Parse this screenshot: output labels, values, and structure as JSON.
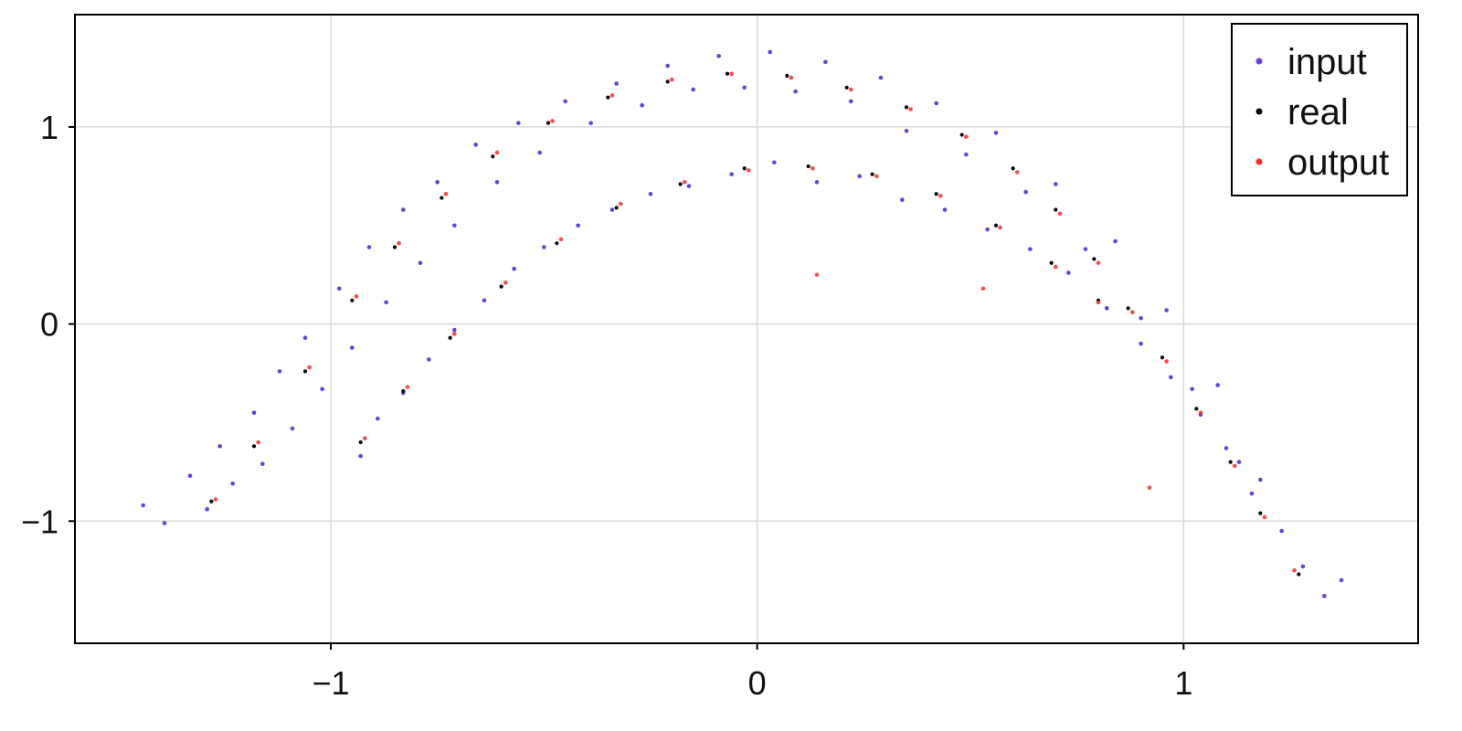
{
  "chart_data": {
    "type": "scatter",
    "title": "",
    "xlabel": "",
    "ylabel": "",
    "xlim": [
      -1.6,
      1.55
    ],
    "ylim": [
      -1.62,
      1.57
    ],
    "x_ticks": [
      {
        "value": -1,
        "label": "−1"
      },
      {
        "value": 0,
        "label": "0"
      },
      {
        "value": 1,
        "label": "1"
      }
    ],
    "y_ticks": [
      {
        "value": -1,
        "label": "−1"
      },
      {
        "value": 0,
        "label": "0"
      },
      {
        "value": 1,
        "label": "1"
      }
    ],
    "grid": true,
    "legend_position": "top-right",
    "series": [
      {
        "name": "input",
        "color": "#6a3fe0",
        "marker": "dot",
        "description": "noisy samples around the curves",
        "samples": [
          [
            -1.44,
            -0.92
          ],
          [
            -1.39,
            -1.01
          ],
          [
            -1.33,
            -0.77
          ],
          [
            -1.29,
            -0.94
          ],
          [
            -1.26,
            -0.62
          ],
          [
            -1.23,
            -0.81
          ],
          [
            -1.18,
            -0.45
          ],
          [
            -1.16,
            -0.71
          ],
          [
            -1.12,
            -0.24
          ],
          [
            -1.09,
            -0.53
          ],
          [
            -1.06,
            -0.07
          ],
          [
            -1.02,
            -0.33
          ],
          [
            -0.98,
            0.18
          ],
          [
            -0.95,
            -0.12
          ],
          [
            -0.91,
            0.39
          ],
          [
            -0.87,
            0.11
          ],
          [
            -0.83,
            0.58
          ],
          [
            -0.79,
            0.31
          ],
          [
            -0.75,
            0.72
          ],
          [
            -0.71,
            0.5
          ],
          [
            -0.66,
            0.91
          ],
          [
            -0.61,
            0.72
          ],
          [
            -0.56,
            1.02
          ],
          [
            -0.51,
            0.87
          ],
          [
            -0.45,
            1.13
          ],
          [
            -0.39,
            1.02
          ],
          [
            -0.33,
            1.22
          ],
          [
            -0.27,
            1.11
          ],
          [
            -0.21,
            1.31
          ],
          [
            -0.15,
            1.19
          ],
          [
            -0.09,
            1.36
          ],
          [
            -0.03,
            1.2
          ],
          [
            0.03,
            1.38
          ],
          [
            0.09,
            1.18
          ],
          [
            0.16,
            1.33
          ],
          [
            0.22,
            1.13
          ],
          [
            0.29,
            1.25
          ],
          [
            0.35,
            0.98
          ],
          [
            0.42,
            1.12
          ],
          [
            0.49,
            0.86
          ],
          [
            0.56,
            0.97
          ],
          [
            0.63,
            0.67
          ],
          [
            0.7,
            0.71
          ],
          [
            0.77,
            0.38
          ],
          [
            0.84,
            0.42
          ],
          [
            0.9,
            0.03
          ],
          [
            0.96,
            0.07
          ],
          [
            1.02,
            -0.33
          ],
          [
            1.08,
            -0.31
          ],
          [
            1.13,
            -0.7
          ],
          [
            1.18,
            -0.79
          ],
          [
            1.23,
            -1.05
          ],
          [
            1.28,
            -1.23
          ],
          [
            1.33,
            -1.38
          ],
          [
            1.37,
            -1.3
          ],
          [
            -0.93,
            -0.67
          ],
          [
            -0.89,
            -0.48
          ],
          [
            -0.83,
            -0.35
          ],
          [
            -0.77,
            -0.18
          ],
          [
            -0.71,
            -0.03
          ],
          [
            -0.64,
            0.12
          ],
          [
            -0.57,
            0.28
          ],
          [
            -0.5,
            0.39
          ],
          [
            -0.42,
            0.5
          ],
          [
            -0.34,
            0.58
          ],
          [
            -0.25,
            0.66
          ],
          [
            -0.16,
            0.7
          ],
          [
            -0.06,
            0.76
          ],
          [
            0.04,
            0.82
          ],
          [
            0.14,
            0.72
          ],
          [
            0.24,
            0.75
          ],
          [
            0.34,
            0.63
          ],
          [
            0.44,
            0.58
          ],
          [
            0.54,
            0.48
          ],
          [
            0.64,
            0.38
          ],
          [
            0.73,
            0.26
          ],
          [
            0.82,
            0.08
          ],
          [
            0.9,
            -0.1
          ],
          [
            0.97,
            -0.27
          ],
          [
            1.04,
            -0.46
          ],
          [
            1.1,
            -0.63
          ],
          [
            1.16,
            -0.86
          ]
        ]
      },
      {
        "name": "real",
        "color": "#000000",
        "marker": "dot",
        "description": "true attractor trajectory",
        "samples": [
          [
            -1.28,
            -0.9
          ],
          [
            -1.18,
            -0.62
          ],
          [
            -1.06,
            -0.24
          ],
          [
            -0.95,
            0.12
          ],
          [
            -0.85,
            0.39
          ],
          [
            -0.74,
            0.64
          ],
          [
            -0.62,
            0.85
          ],
          [
            -0.49,
            1.02
          ],
          [
            -0.35,
            1.15
          ],
          [
            -0.21,
            1.23
          ],
          [
            -0.07,
            1.27
          ],
          [
            0.07,
            1.26
          ],
          [
            0.21,
            1.2
          ],
          [
            0.35,
            1.1
          ],
          [
            0.48,
            0.96
          ],
          [
            0.6,
            0.79
          ],
          [
            0.7,
            0.58
          ],
          [
            0.79,
            0.33
          ],
          [
            0.87,
            0.08
          ],
          [
            0.95,
            -0.17
          ],
          [
            1.03,
            -0.43
          ],
          [
            1.11,
            -0.7
          ],
          [
            1.18,
            -0.96
          ],
          [
            1.27,
            -1.27
          ],
          [
            -0.93,
            -0.6
          ],
          [
            -0.83,
            -0.34
          ],
          [
            -0.72,
            -0.07
          ],
          [
            -0.6,
            0.19
          ],
          [
            -0.47,
            0.41
          ],
          [
            -0.33,
            0.59
          ],
          [
            -0.18,
            0.71
          ],
          [
            -0.03,
            0.79
          ],
          [
            0.12,
            0.8
          ],
          [
            0.27,
            0.76
          ],
          [
            0.42,
            0.66
          ],
          [
            0.56,
            0.5
          ],
          [
            0.69,
            0.31
          ],
          [
            0.8,
            0.12
          ]
        ]
      },
      {
        "name": "output",
        "color": "#ff2a2a",
        "marker": "dot",
        "description": "model reconstruction",
        "samples": [
          [
            -1.27,
            -0.89
          ],
          [
            -1.17,
            -0.6
          ],
          [
            -1.05,
            -0.22
          ],
          [
            -0.94,
            0.14
          ],
          [
            -0.84,
            0.41
          ],
          [
            -0.73,
            0.66
          ],
          [
            -0.61,
            0.87
          ],
          [
            -0.48,
            1.03
          ],
          [
            -0.34,
            1.16
          ],
          [
            -0.2,
            1.24
          ],
          [
            -0.06,
            1.27
          ],
          [
            0.08,
            1.25
          ],
          [
            0.22,
            1.19
          ],
          [
            0.36,
            1.09
          ],
          [
            0.49,
            0.95
          ],
          [
            0.61,
            0.77
          ],
          [
            0.71,
            0.56
          ],
          [
            0.8,
            0.31
          ],
          [
            0.88,
            0.06
          ],
          [
            0.96,
            -0.19
          ],
          [
            1.04,
            -0.45
          ],
          [
            1.12,
            -0.72
          ],
          [
            1.19,
            -0.98
          ],
          [
            1.26,
            -1.25
          ],
          [
            -0.92,
            -0.58
          ],
          [
            -0.82,
            -0.32
          ],
          [
            -0.71,
            -0.05
          ],
          [
            -0.59,
            0.21
          ],
          [
            -0.46,
            0.43
          ],
          [
            -0.32,
            0.61
          ],
          [
            -0.17,
            0.72
          ],
          [
            -0.02,
            0.78
          ],
          [
            0.13,
            0.79
          ],
          [
            0.28,
            0.75
          ],
          [
            0.43,
            0.65
          ],
          [
            0.57,
            0.49
          ],
          [
            0.7,
            0.29
          ],
          [
            0.8,
            0.11
          ],
          [
            0.14,
            0.25
          ],
          [
            0.53,
            0.18
          ],
          [
            0.92,
            -0.83
          ]
        ]
      }
    ]
  }
}
